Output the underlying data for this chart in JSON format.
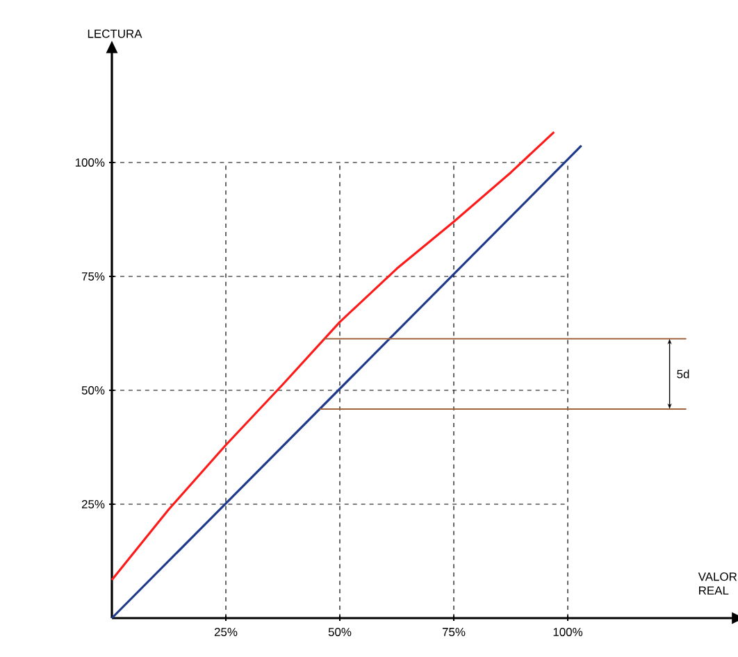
{
  "chart_data": {
    "type": "line",
    "ylabel": "LECTURA",
    "xlabel": "VALOR REAL",
    "xlim": [
      0,
      136
    ],
    "ylim": [
      0,
      124
    ],
    "xticks": [
      {
        "value": 25,
        "label": "25%"
      },
      {
        "value": 50,
        "label": "50%"
      },
      {
        "value": 75,
        "label": "75%"
      },
      {
        "value": 100,
        "label": "100%"
      }
    ],
    "yticks": [
      {
        "value": 25,
        "label": "25%"
      },
      {
        "value": 50,
        "label": "50%"
      },
      {
        "value": 75,
        "label": "75%"
      },
      {
        "value": 100,
        "label": "100%"
      }
    ],
    "grid": true,
    "line_style": "solid",
    "marker": "none",
    "series": [
      {
        "color": "#ff1a1a",
        "x": [
          0,
          12.5,
          25,
          37.5,
          50,
          62.5,
          75,
          87.5,
          97
        ],
        "values": [
          8.4,
          23.9,
          38,
          51.3,
          65,
          76.7,
          87,
          97.8,
          106.7
        ]
      },
      {
        "color": "#1f3a8a",
        "x": [
          0,
          103
        ],
        "values": [
          0,
          103.7
        ]
      },
      {
        "color": "#a0623a",
        "x": [
          46.6,
          126
        ],
        "values": [
          61.3,
          61.3
        ]
      },
      {
        "color": "#a0623a",
        "x": [
          45.6,
          126
        ],
        "values": [
          45.9,
          45.9
        ]
      }
    ],
    "annotations": [
      "5d"
    ]
  }
}
